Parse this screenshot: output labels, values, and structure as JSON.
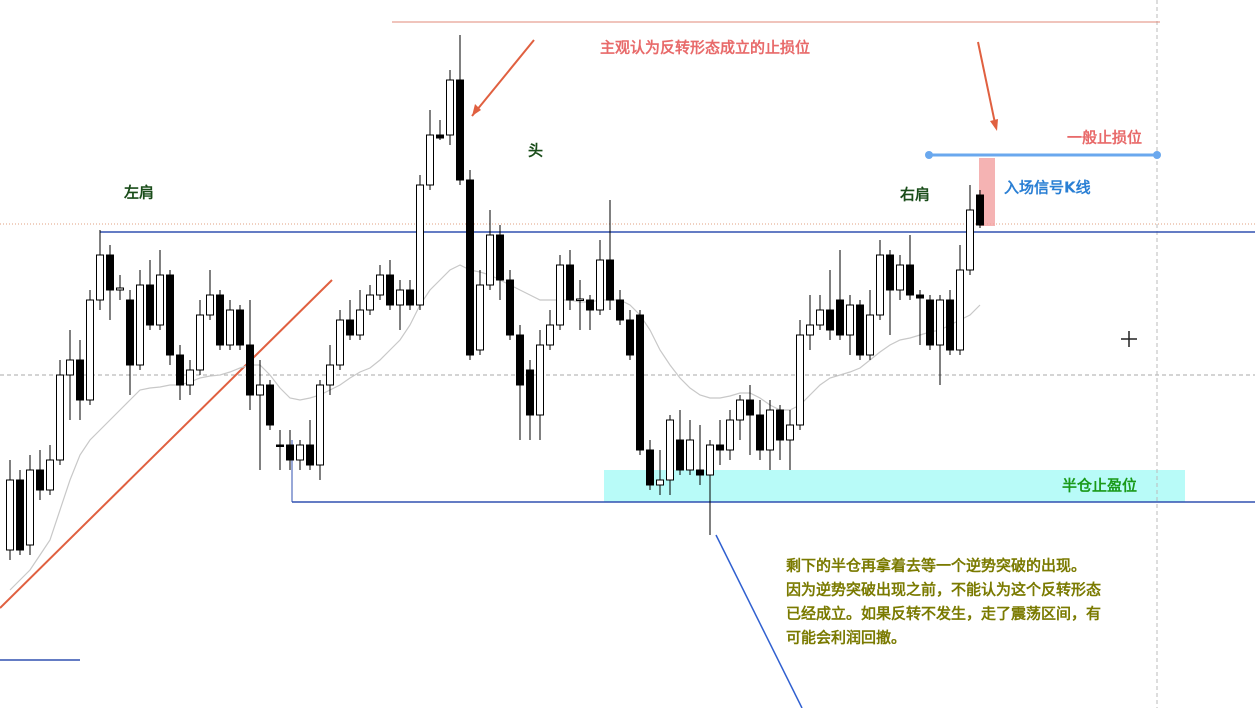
{
  "chart_data": {
    "type": "candlestick",
    "ylim": [
      0,
      700
    ],
    "open": [
      150,
      220,
      155,
      230,
      210,
      240,
      325,
      340,
      300,
      400,
      445,
      410,
      400,
      335,
      415,
      375,
      425,
      345,
      315,
      330,
      385,
      405,
      355,
      390,
      355,
      305,
      315,
      255,
      255,
      240,
      255,
      235,
      315,
      335,
      380,
      365,
      390,
      405,
      425,
      395,
      410,
      395,
      515,
      565,
      565,
      620,
      520,
      350,
      415,
      465,
      420,
      365,
      330,
      285,
      355,
      375,
      435,
      400,
      400,
      390,
      440,
      400,
      380,
      385,
      250,
      215,
      220,
      260,
      230,
      230,
      225,
      255,
      250,
      280,
      300,
      285,
      250,
      290,
      260,
      275,
      365,
      375,
      390,
      400,
      365,
      395,
      345,
      385,
      445,
      410,
      435,
      405,
      400,
      355,
      400,
      350,
      430,
      505
    ],
    "close": [
      220,
      150,
      230,
      210,
      240,
      325,
      340,
      300,
      400,
      445,
      410,
      412,
      335,
      415,
      375,
      425,
      345,
      315,
      330,
      385,
      405,
      355,
      390,
      355,
      305,
      315,
      275,
      254,
      240,
      255,
      235,
      315,
      335,
      380,
      365,
      390,
      405,
      425,
      395,
      410,
      395,
      515,
      565,
      562,
      620,
      520,
      345,
      415,
      465,
      420,
      365,
      315,
      285,
      355,
      375,
      435,
      400,
      401,
      390,
      440,
      400,
      380,
      345,
      250,
      215,
      220,
      280,
      230,
      260,
      225,
      255,
      250,
      280,
      300,
      285,
      250,
      290,
      260,
      275,
      365,
      375,
      390,
      370,
      365,
      395,
      345,
      385,
      445,
      410,
      435,
      405,
      402,
      355,
      400,
      350,
      430,
      490,
      475
    ],
    "high": [
      240,
      230,
      245,
      250,
      255,
      340,
      370,
      360,
      410,
      470,
      455,
      425,
      410,
      430,
      440,
      450,
      430,
      355,
      340,
      400,
      430,
      410,
      400,
      395,
      400,
      340,
      320,
      270,
      270,
      260,
      280,
      320,
      355,
      390,
      400,
      410,
      415,
      435,
      440,
      420,
      420,
      525,
      590,
      580,
      630,
      665,
      530,
      430,
      490,
      475,
      430,
      375,
      340,
      370,
      390,
      445,
      450,
      420,
      405,
      460,
      500,
      410,
      390,
      390,
      260,
      250,
      285,
      290,
      280,
      275,
      260,
      280,
      290,
      305,
      315,
      300,
      300,
      295,
      290,
      380,
      405,
      405,
      430,
      450,
      405,
      400,
      410,
      460,
      450,
      445,
      465,
      410,
      405,
      405,
      410,
      455,
      515,
      510
    ],
    "low": [
      140,
      145,
      145,
      200,
      205,
      235,
      280,
      280,
      295,
      390,
      380,
      400,
      305,
      330,
      370,
      370,
      335,
      300,
      305,
      325,
      380,
      350,
      350,
      350,
      290,
      230,
      270,
      230,
      230,
      230,
      230,
      220,
      305,
      330,
      360,
      360,
      385,
      400,
      390,
      370,
      390,
      390,
      510,
      560,
      555,
      515,
      340,
      345,
      410,
      400,
      360,
      260,
      260,
      260,
      350,
      370,
      390,
      370,
      370,
      385,
      390,
      375,
      340,
      245,
      210,
      205,
      205,
      225,
      225,
      215,
      165,
      235,
      240,
      260,
      245,
      240,
      230,
      240,
      230,
      270,
      350,
      370,
      360,
      360,
      345,
      340,
      340,
      380,
      365,
      400,
      400,
      355,
      350,
      315,
      345,
      345,
      425,
      472
    ],
    "ma": [
      110,
      120,
      130,
      145,
      160,
      190,
      220,
      245,
      260,
      270,
      280,
      290,
      300,
      310,
      312,
      313,
      315,
      315,
      318,
      322,
      324,
      325,
      328,
      332,
      335,
      335,
      325,
      312,
      302,
      300,
      302,
      305,
      310,
      315,
      322,
      328,
      332,
      340,
      350,
      360,
      375,
      395,
      410,
      420,
      430,
      435,
      430,
      428,
      425,
      420,
      415,
      410,
      405,
      400,
      400,
      400,
      400,
      398,
      398,
      400,
      400,
      400,
      395,
      385,
      370,
      350,
      335,
      322,
      312,
      305,
      302,
      302,
      304,
      307,
      307,
      302,
      295,
      290,
      290,
      295,
      305,
      315,
      322,
      325,
      328,
      332,
      340,
      348,
      355,
      360,
      362,
      365,
      368,
      370,
      375,
      380,
      385,
      395
    ],
    "stop_label": "主观认为反转形态成立的止损位",
    "head": "头",
    "left_shoulder": "左肩",
    "right_shoulder": "右肩",
    "normal_stop": "一般止损位",
    "entry_label": "入场信号K线",
    "take_profit": "半仓止盈位",
    "note": [
      "剩下的半仓再拿着去等一个逆势突破的出现。",
      "因为逆势突破出现之前，不能认为这个反转形态",
      "已经成立。如果反转不发生，走了震荡区间，有",
      "可能会利润回撤。"
    ]
  }
}
